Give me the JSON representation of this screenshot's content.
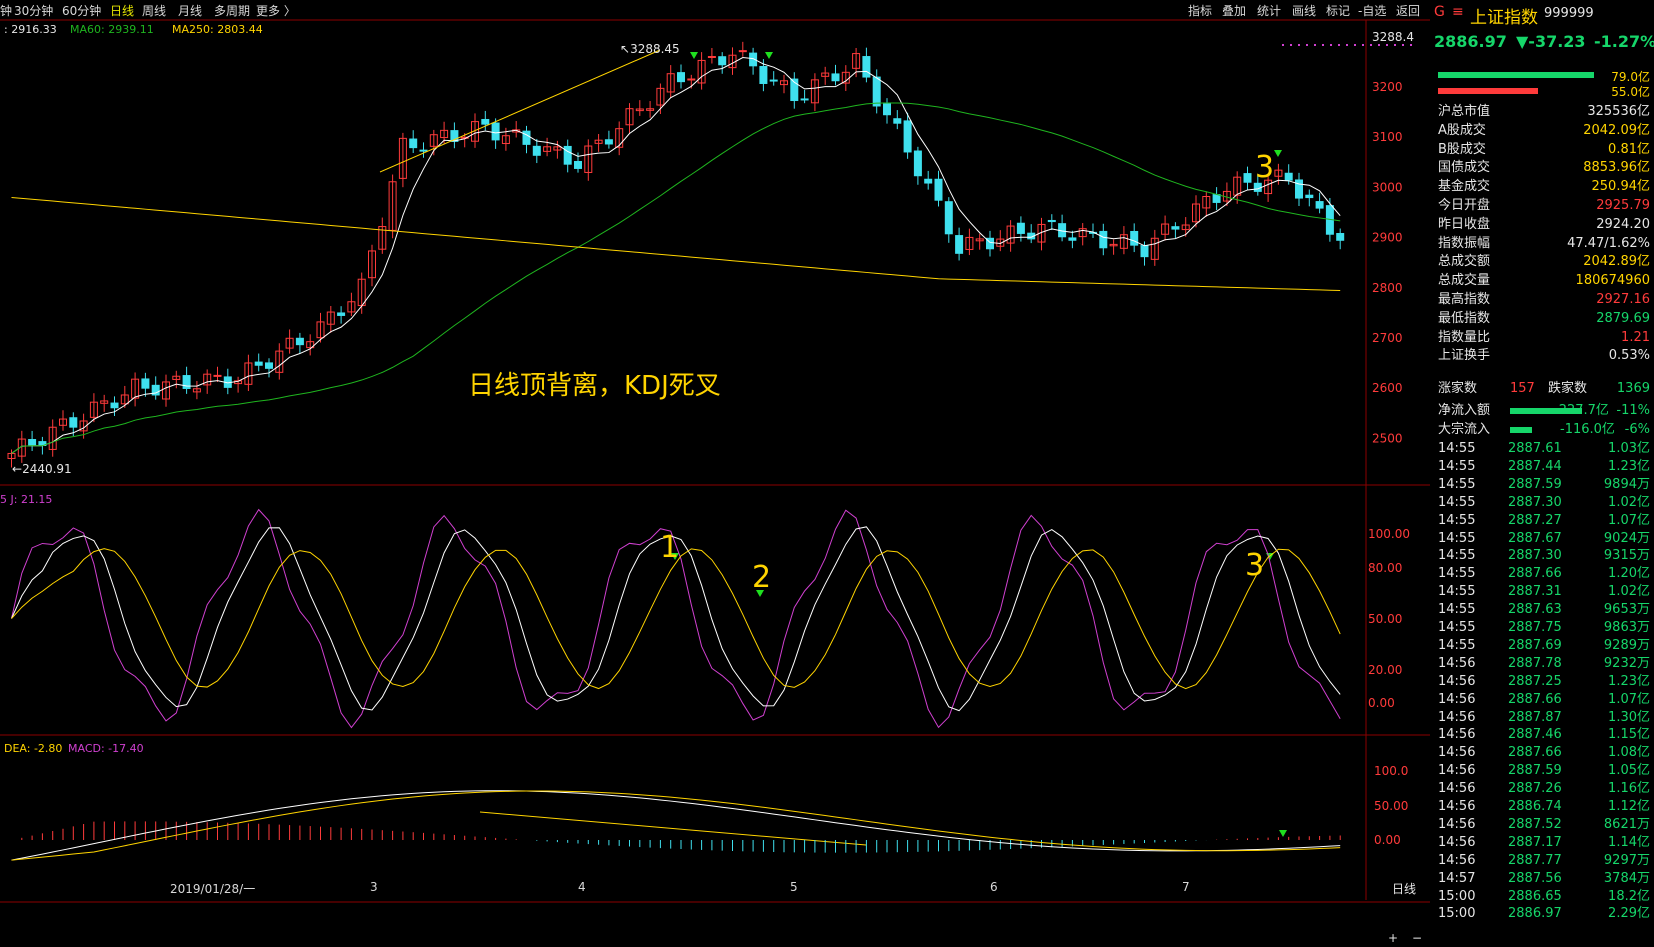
{
  "toolbar": {
    "periods": [
      {
        "label": "钟",
        "active": false
      },
      {
        "label": "30分钟",
        "active": false
      },
      {
        "label": "60分钟",
        "active": false
      },
      {
        "label": "日线",
        "active": true
      },
      {
        "label": "周线",
        "active": false
      },
      {
        "label": "月线",
        "active": false
      },
      {
        "label": "多周期",
        "active": false
      },
      {
        "label": "更多 〉",
        "active": false
      }
    ],
    "right_buttons": [
      "指标",
      "叠加",
      "统计",
      "画线",
      "标记",
      "-自选",
      "返回"
    ]
  },
  "ma_labels": [
    {
      "text": ": 2916.33",
      "color": "#e6e6e6"
    },
    {
      "text": "MA60: 2939.11",
      "color": "#1fb51f"
    },
    {
      "text": "MA250: 2803.44",
      "color": "#ffd400"
    }
  ],
  "price_axis": [
    "3288.4",
    "3200",
    "3100",
    "3000",
    "2900",
    "2800",
    "2700",
    "2600",
    "2500"
  ],
  "kdj_label": "5  J: 21.15",
  "kdj_axis": [
    "100.00",
    "80.00",
    "50.00",
    "20.00",
    "0.00"
  ],
  "macd_label_dea": "DEA: -2.80",
  "macd_label_macd": "MACD: -17.40",
  "macd_axis": [
    "100.0",
    "50.00",
    "0.00"
  ],
  "dates": [
    "2019/01/28/一",
    "3",
    "4",
    "5",
    "6",
    "7"
  ],
  "bottom_right": "日线",
  "chart_annotations": {
    "high": "3288.45",
    "low": "2440.91",
    "divergence_text": "日线顶背离，KDJ死叉",
    "marks": [
      "3",
      "1",
      "2",
      "3"
    ]
  },
  "side_panel": {
    "index_name": "上证指数",
    "index_code": "999999",
    "price": "2886.97",
    "change": "▼-37.23",
    "change_pct": "-1.27%",
    "bar1": "79.0亿",
    "bar2": "55.0亿",
    "stats": [
      {
        "k": "沪总市值",
        "v": "325536亿",
        "c": "white"
      },
      {
        "k": "A股成交",
        "v": "2042.09亿",
        "c": "yellow"
      },
      {
        "k": "B股成交",
        "v": "0.81亿",
        "c": "yellow"
      },
      {
        "k": "国债成交",
        "v": "8853.96亿",
        "c": "yellow"
      },
      {
        "k": "基金成交",
        "v": "250.94亿",
        "c": "yellow"
      },
      {
        "k": "今日开盘",
        "v": "2925.79",
        "c": "red"
      },
      {
        "k": "昨日收盘",
        "v": "2924.20",
        "c": "white"
      },
      {
        "k": "指数振幅",
        "v": "47.47/1.62%",
        "c": "white"
      },
      {
        "k": "总成交额",
        "v": "2042.89亿",
        "c": "yellow"
      },
      {
        "k": "总成交量",
        "v": "180674960",
        "c": "yellow"
      },
      {
        "k": "最高指数",
        "v": "2927.16",
        "c": "red"
      },
      {
        "k": "最低指数",
        "v": "2879.69",
        "c": "green"
      },
      {
        "k": "指数量比",
        "v": "1.21",
        "c": "red"
      },
      {
        "k": "上证换手",
        "v": "0.53%",
        "c": "white"
      }
    ],
    "up_label": "涨家数",
    "up_count": "157",
    "down_label": "跌家数",
    "down_count": "1369",
    "netflow_label": "净流入额",
    "netflow_value": "-227.7亿",
    "netflow_pct": "-11%",
    "bigflow_label": "大宗流入",
    "bigflow_value": "-116.0亿",
    "bigflow_pct": "-6%",
    "trades": [
      {
        "t": "14:55",
        "p": "2887.61",
        "v": "1.03亿"
      },
      {
        "t": "14:55",
        "p": "2887.44",
        "v": "1.23亿"
      },
      {
        "t": "14:55",
        "p": "2887.59",
        "v": "9894万"
      },
      {
        "t": "14:55",
        "p": "2887.30",
        "v": "1.02亿"
      },
      {
        "t": "14:55",
        "p": "2887.27",
        "v": "1.07亿"
      },
      {
        "t": "14:55",
        "p": "2887.67",
        "v": "9024万"
      },
      {
        "t": "14:55",
        "p": "2887.30",
        "v": "9315万"
      },
      {
        "t": "14:55",
        "p": "2887.66",
        "v": "1.20亿"
      },
      {
        "t": "14:55",
        "p": "2887.31",
        "v": "1.02亿"
      },
      {
        "t": "14:55",
        "p": "2887.63",
        "v": "9653万"
      },
      {
        "t": "14:55",
        "p": "2887.75",
        "v": "9863万"
      },
      {
        "t": "14:55",
        "p": "2887.69",
        "v": "9289万"
      },
      {
        "t": "14:56",
        "p": "2887.78",
        "v": "9232万"
      },
      {
        "t": "14:56",
        "p": "2887.25",
        "v": "1.23亿"
      },
      {
        "t": "14:56",
        "p": "2887.66",
        "v": "1.07亿"
      },
      {
        "t": "14:56",
        "p": "2887.87",
        "v": "1.30亿"
      },
      {
        "t": "14:56",
        "p": "2887.46",
        "v": "1.15亿"
      },
      {
        "t": "14:56",
        "p": "2887.66",
        "v": "1.08亿"
      },
      {
        "t": "14:56",
        "p": "2887.59",
        "v": "1.05亿"
      },
      {
        "t": "14:56",
        "p": "2887.26",
        "v": "1.16亿"
      },
      {
        "t": "14:56",
        "p": "2886.74",
        "v": "1.12亿"
      },
      {
        "t": "14:56",
        "p": "2887.52",
        "v": "8621万"
      },
      {
        "t": "14:56",
        "p": "2887.17",
        "v": "1.14亿"
      },
      {
        "t": "14:56",
        "p": "2887.77",
        "v": "9297万"
      },
      {
        "t": "14:57",
        "p": "2887.56",
        "v": "3784万"
      },
      {
        "t": "15:00",
        "p": "2886.65",
        "v": "18.2亿"
      },
      {
        "t": "15:00",
        "p": "2886.97",
        "v": "2.29亿"
      }
    ]
  },
  "colors": {
    "up": "#ff3b3b",
    "down": "#3fe0ee",
    "ma5": "#ffffff",
    "ma60": "#1fb51f",
    "ma250": "#ffd400",
    "kdj_j": "#d040d0",
    "grid": "#8b0000"
  }
}
